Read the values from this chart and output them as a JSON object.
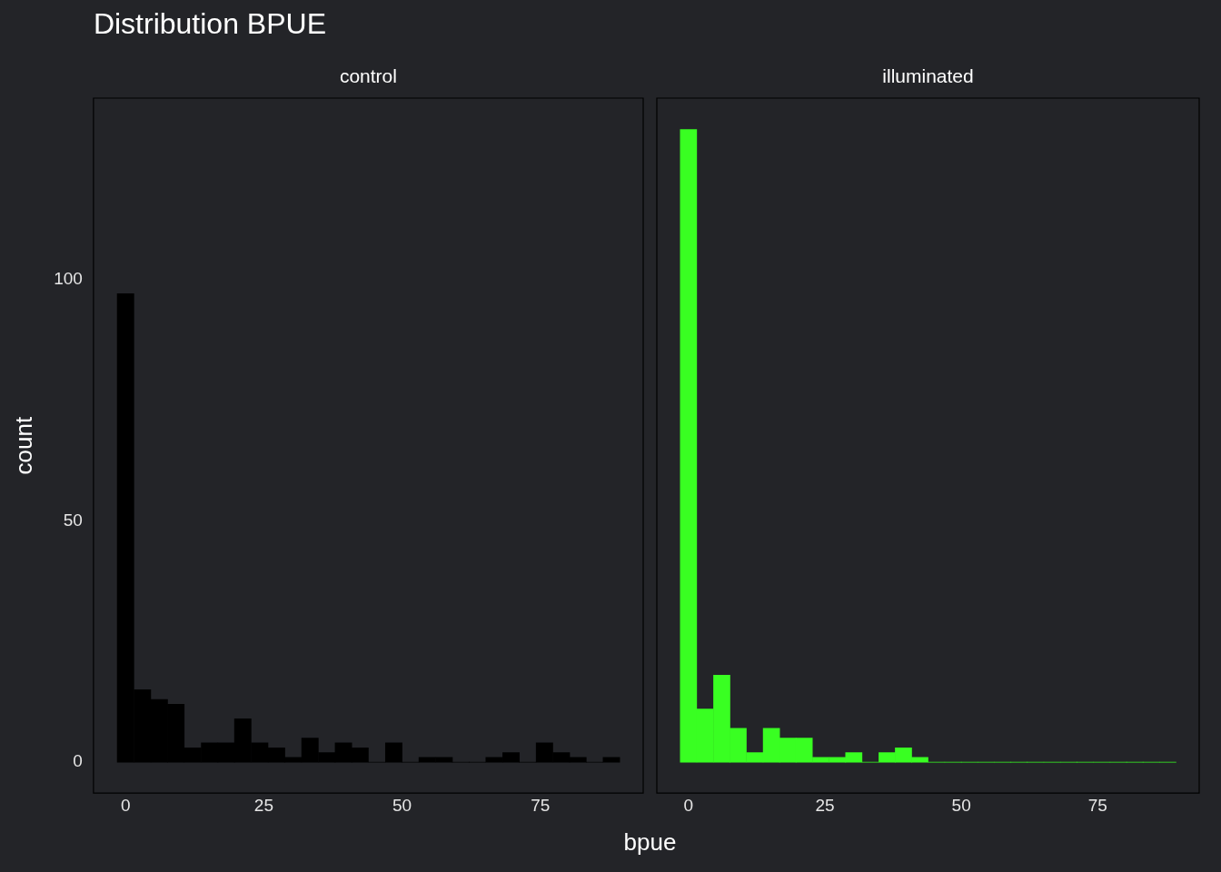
{
  "chart_data": [
    {
      "type": "histogram",
      "title": "Distribution BPUE",
      "subtitle": "control",
      "xlabel": "bpue",
      "ylabel": "count",
      "color": "#000000",
      "bins": [
        -1.5,
        1.5,
        4.6,
        7.6,
        10.6,
        13.7,
        16.7,
        19.7,
        22.7,
        25.8,
        28.8,
        31.8,
        34.9,
        37.9,
        40.9,
        43.9,
        47.0,
        50.0,
        53.0,
        56.1,
        59.1,
        62.1,
        65.1,
        68.2,
        71.2,
        74.2,
        77.3,
        80.3,
        83.3,
        86.3,
        89.4
      ],
      "values": [
        97,
        15,
        13,
        12,
        3,
        4,
        4,
        9,
        4,
        3,
        1,
        5,
        2,
        4,
        3,
        0,
        4,
        0,
        1,
        1,
        0,
        0,
        1,
        2,
        0,
        4,
        2,
        1,
        0,
        1
      ],
      "xlim": [
        -5.8,
        93.6
      ],
      "xticks": [
        0,
        25,
        50,
        75
      ],
      "ylim": [
        -6.4,
        137.5
      ],
      "yticks": [
        0,
        50,
        100
      ],
      "grid": false,
      "legend": false
    },
    {
      "type": "histogram",
      "subtitle": "illuminated",
      "color": "#39ff22",
      "bins": [
        -1.5,
        1.5,
        4.6,
        7.6,
        10.6,
        13.7,
        16.7,
        19.7,
        22.7,
        25.8,
        28.8,
        31.8,
        34.9,
        37.9,
        40.9,
        43.9,
        47.0,
        50.0,
        53.0,
        56.1,
        59.1,
        62.1,
        65.1,
        68.2,
        71.2,
        74.2,
        77.3,
        80.3,
        83.3,
        86.3,
        89.4
      ],
      "values": [
        131,
        11,
        18,
        7,
        2,
        7,
        5,
        5,
        1,
        1,
        2,
        0,
        2,
        3,
        1,
        0,
        0,
        0,
        0,
        0,
        0,
        0,
        0,
        0,
        0,
        0,
        0,
        0,
        0,
        0
      ],
      "xlim": [
        -5.8,
        93.6
      ],
      "xticks": [
        0,
        25,
        50,
        75
      ],
      "ylim": [
        -6.4,
        137.5
      ],
      "yticks": [
        0,
        50,
        100
      ],
      "tick_labels": "x",
      "grid": false,
      "legend": false
    }
  ]
}
